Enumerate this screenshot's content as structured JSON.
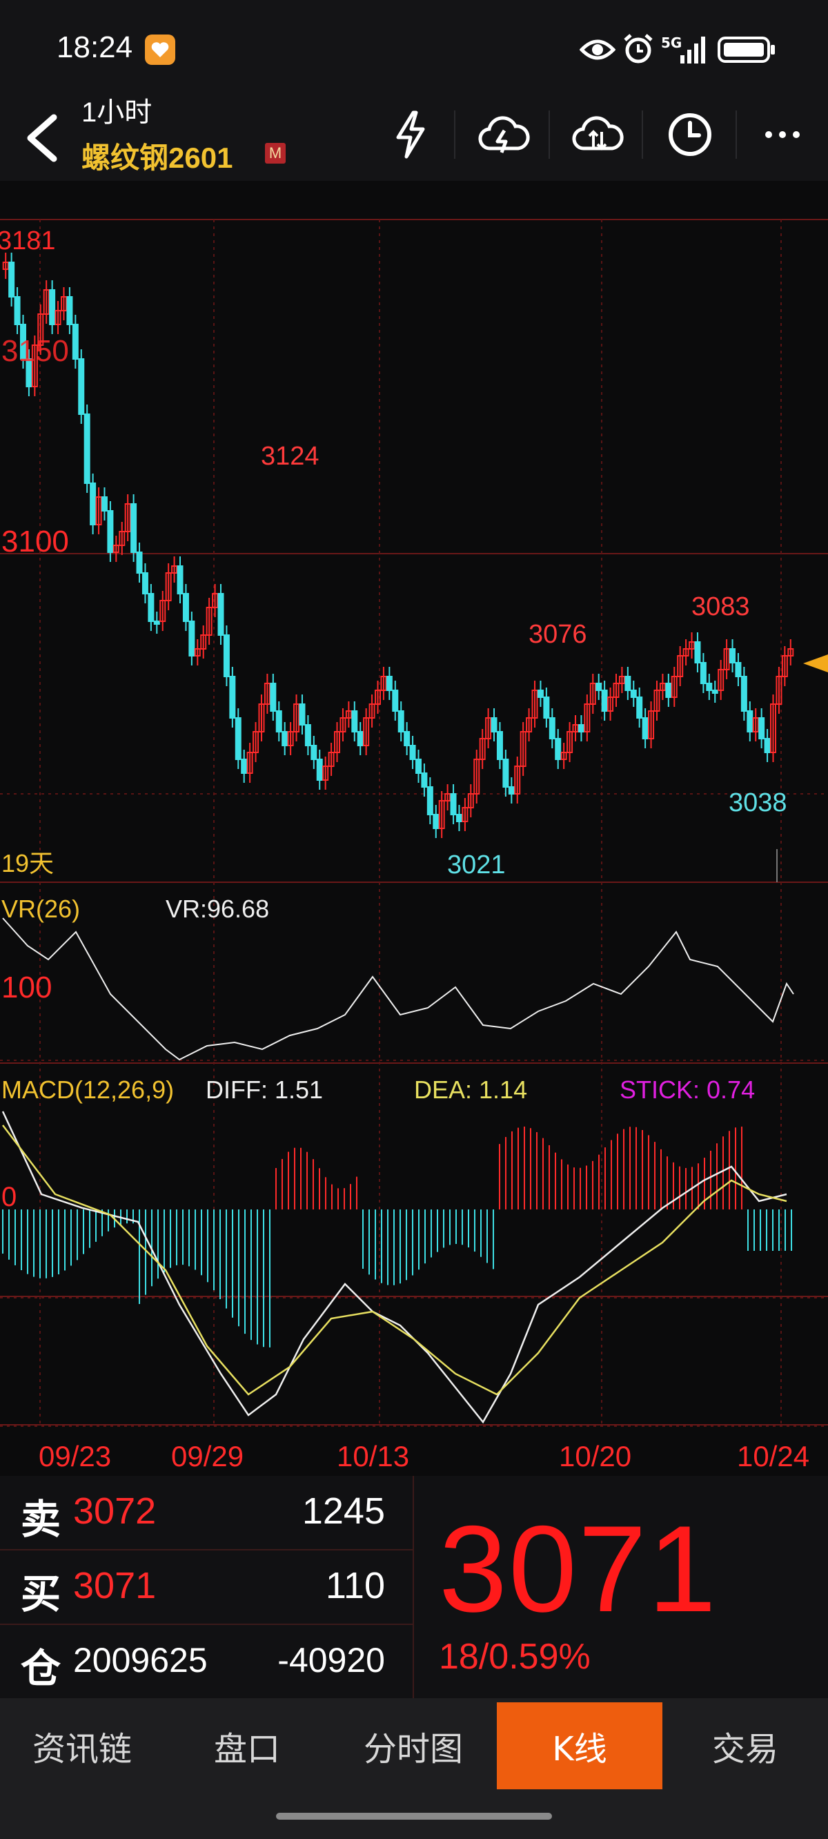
{
  "status_bar": {
    "time": "18:24",
    "network": "5G",
    "icons": [
      "heart-app-icon",
      "eye-icon",
      "alarm-icon",
      "signal-icon",
      "battery-icon"
    ]
  },
  "header": {
    "period": "1小时",
    "instrument": "螺纹钢2601",
    "badge": "M",
    "actions": [
      "lightning-icon",
      "cloud-lightning-icon",
      "cloud-sync-icon",
      "clock-icon",
      "more-icon"
    ]
  },
  "price_chart": {
    "y_labels": [
      "3150",
      "3100"
    ],
    "high_label": "3181",
    "markers": [
      {
        "value": "3124",
        "color": "#ff3b3b"
      },
      {
        "value": "3076",
        "color": "#ff3b3b"
      },
      {
        "value": "3083",
        "color": "#ff3b3b"
      },
      {
        "value": "3021",
        "color": "#5fe0e6"
      },
      {
        "value": "3038",
        "color": "#5fe0e6"
      }
    ],
    "period_note": "19天"
  },
  "vr": {
    "title": "VR(26)",
    "value_text": "VR:96.68",
    "level_label": "100"
  },
  "macd": {
    "title": "MACD(12,26,9)",
    "diff_text": "DIFF: 1.51",
    "dea_text": "DEA: 1.14",
    "stick_text": "STICK: 0.74",
    "zero_label": "0",
    "colors": {
      "diff": "#f0f0f0",
      "dea": "#e8e060",
      "stick": "#e020e0"
    }
  },
  "x_axis": {
    "dates": [
      "09/23",
      "09/29",
      "10/13",
      "10/20",
      "10/24"
    ]
  },
  "quote": {
    "sell_key": "卖",
    "sell_price": "3072",
    "sell_volume": "1245",
    "buy_key": "买",
    "buy_price": "3071",
    "buy_volume": "110",
    "oi_key": "仓",
    "open_interest": "2009625",
    "oi_change": "-40920",
    "last_price": "3071",
    "change": "18/0.59%"
  },
  "tabs": [
    {
      "label": "资讯链",
      "active": false
    },
    {
      "label": "盘口",
      "active": false
    },
    {
      "label": "分时图",
      "active": false
    },
    {
      "label": "K线",
      "active": true
    },
    {
      "label": "交易",
      "active": false
    }
  ],
  "colors": {
    "up": "#ff2a2a",
    "down": "#3ee0e6",
    "accent": "#ee5d0e",
    "title_gold": "#f2c230"
  }
}
